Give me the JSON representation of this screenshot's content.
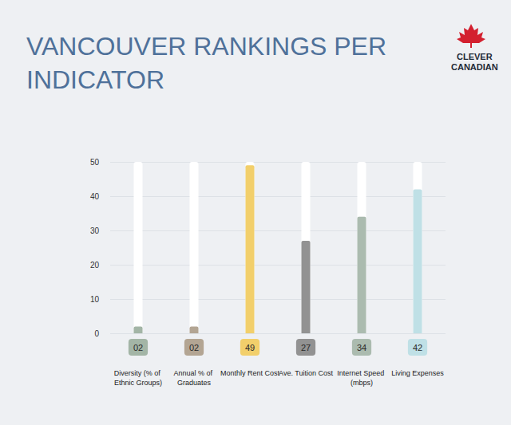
{
  "chart_data": {
    "type": "bar",
    "title": "VANCOUVER RANKINGS PER INDICATOR",
    "brand": "CLEVER CANADIAN",
    "categories": [
      "Diversity (% of Ethnic Groups)",
      "Annual % of Graduates",
      "Monthly Rent Cost",
      "Ave. Tuition Cost",
      "Internet Speed (mbps)",
      "Living Expenses"
    ],
    "values": [
      2,
      2,
      49,
      27,
      34,
      42
    ],
    "value_labels": [
      "02",
      "02",
      "49",
      "27",
      "34",
      "42"
    ],
    "colors": [
      "#a3b5a6",
      "#b3a593",
      "#f2cf6b",
      "#929292",
      "#abbbaf",
      "#bfe0e6"
    ],
    "ylim": [
      0,
      50
    ],
    "yticks": [
      0,
      10,
      20,
      30,
      40,
      50
    ],
    "grid": true,
    "data_labels": true
  }
}
